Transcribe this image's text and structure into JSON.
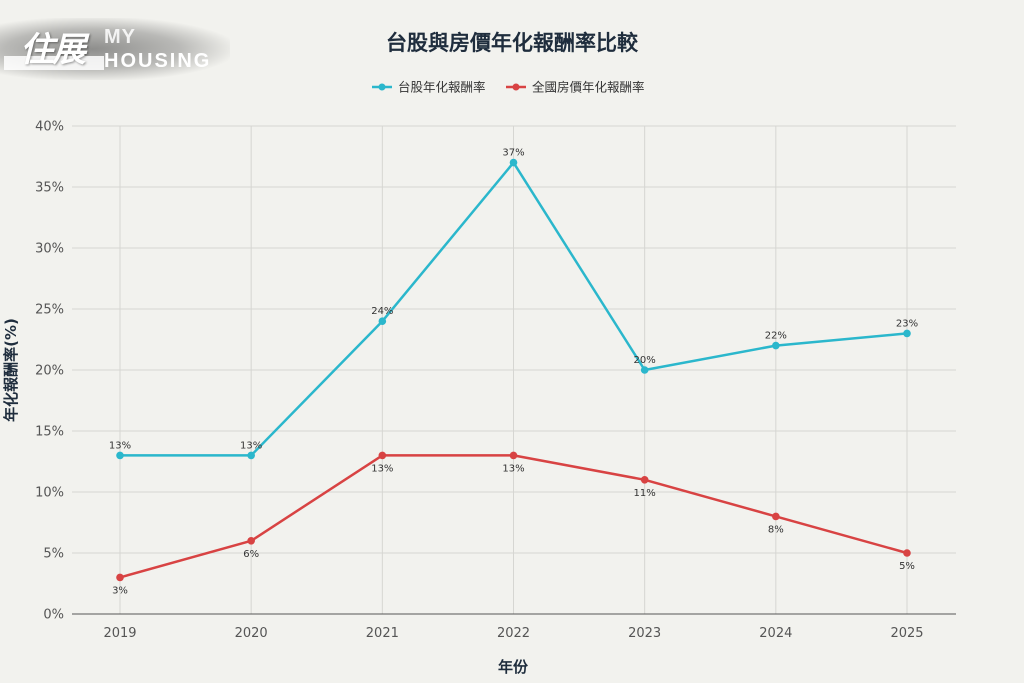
{
  "logo": {
    "cjk": "住展",
    "my": "MY",
    "housing": "HOUSING"
  },
  "chart_data": {
    "type": "line",
    "title": "台股與房價年化報酬率比較",
    "xlabel": "年份",
    "ylabel": "年化報酬率(%)",
    "x": [
      "2019",
      "2020",
      "2021",
      "2022",
      "2023",
      "2024",
      "2025"
    ],
    "ylim": [
      0,
      40
    ],
    "yticks": [
      0,
      5,
      10,
      15,
      20,
      25,
      30,
      35,
      40
    ],
    "ytick_suffix": "%",
    "grid": true,
    "legend_position": "top-center",
    "series": [
      {
        "name": "台股年化報酬率",
        "color": "#2bb7cc",
        "values": [
          13,
          13,
          24,
          37,
          20,
          22,
          23
        ],
        "label_position": "above"
      },
      {
        "name": "全國房價年化報酬率",
        "color": "#d84343",
        "values": [
          3,
          6,
          13,
          13,
          11,
          8,
          5
        ],
        "label_position": "below"
      }
    ]
  }
}
